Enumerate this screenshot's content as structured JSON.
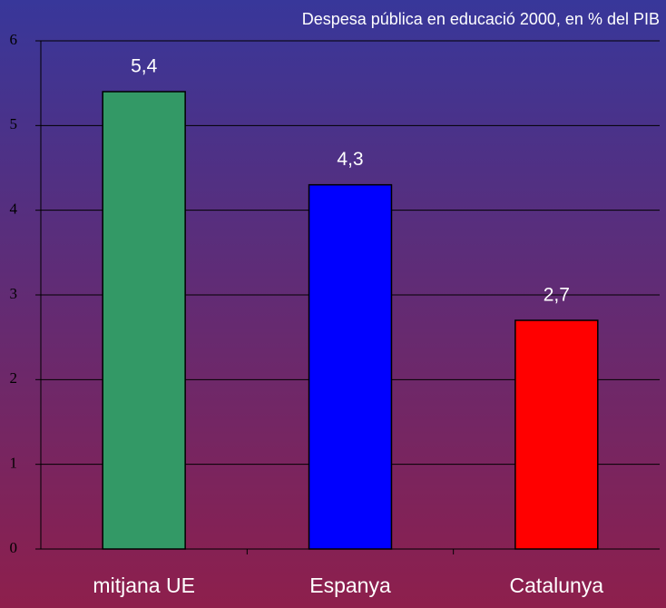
{
  "chart_data": {
    "type": "bar",
    "title": "Despesa pública en educació 2000, en % del PIB",
    "categories": [
      "mitjana UE",
      "Espanya",
      "Catalunya"
    ],
    "values": [
      5.4,
      4.3,
      2.7
    ],
    "value_labels": [
      "5,4",
      "4,3",
      "2,7"
    ],
    "colors": [
      "#339966",
      "#0000ff",
      "#ff0000"
    ],
    "ylim": [
      0,
      6
    ],
    "yticks": [
      0,
      1,
      2,
      3,
      4,
      5,
      6
    ],
    "grid": true
  }
}
